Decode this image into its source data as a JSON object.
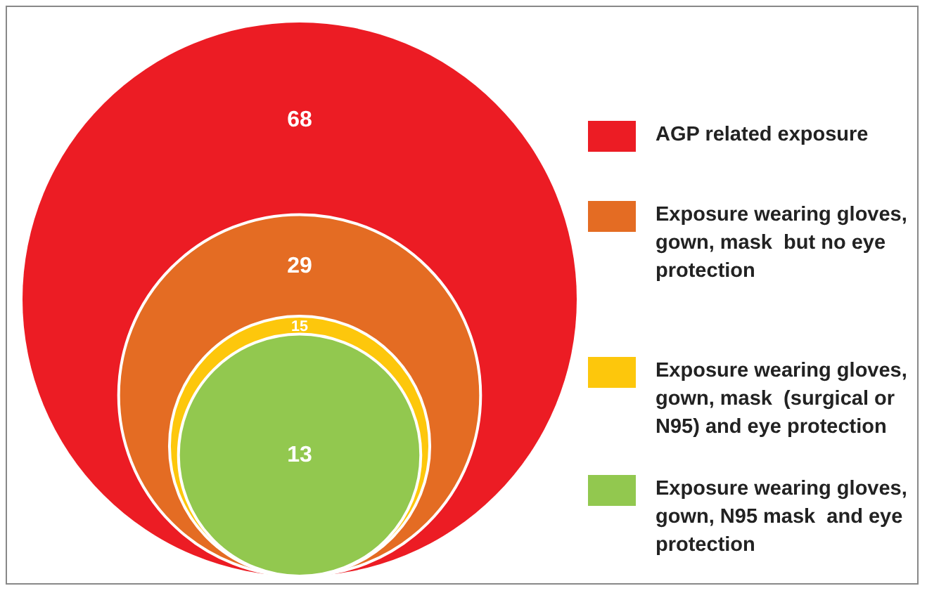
{
  "chart_data": {
    "type": "other",
    "categories": [
      "AGP related exposure",
      "Exposure wearing gloves, gown, mask  but no eye protection",
      "Exposure wearing gloves, gown, mask  (surgical or N95) and eye protection",
      "Exposure wearing gloves, gown, N95 mask  and eye protection"
    ],
    "values": [
      68,
      29,
      15,
      13
    ],
    "colors": [
      "#ec1c24",
      "#e46c23",
      "#fdc70c",
      "#92c84f"
    ],
    "data_labels": true
  }
}
